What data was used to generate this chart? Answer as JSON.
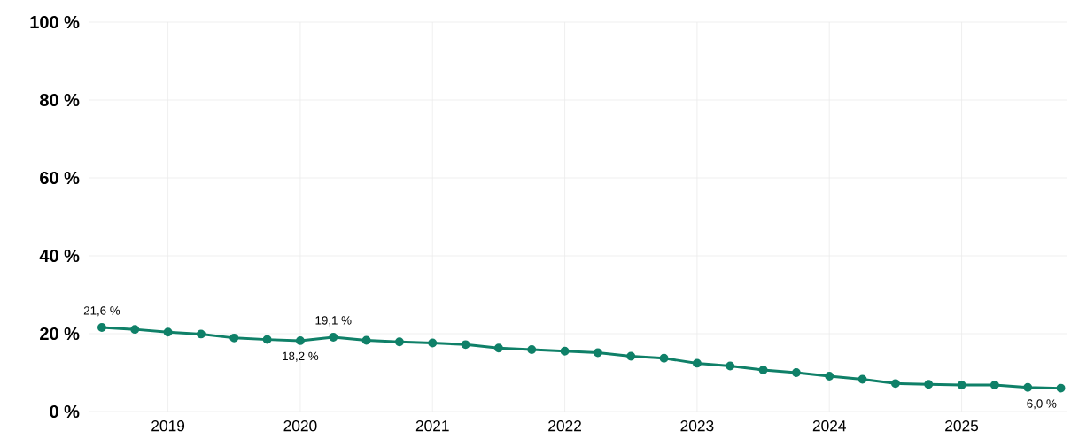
{
  "chart_data": {
    "type": "line",
    "x": [
      2018.5,
      2018.75,
      2019.0,
      2019.25,
      2019.5,
      2019.75,
      2020.0,
      2020.25,
      2020.5,
      2020.75,
      2021.0,
      2021.25,
      2021.5,
      2021.75,
      2022.0,
      2022.25,
      2022.5,
      2022.75,
      2023.0,
      2023.25,
      2023.5,
      2023.75,
      2024.0,
      2024.25,
      2024.5,
      2024.75,
      2025.0,
      2025.25,
      2025.5,
      2025.75
    ],
    "series": [
      {
        "color": "#0f8068",
        "values": [
          21.6,
          21.1,
          20.4,
          19.9,
          18.9,
          18.5,
          18.2,
          19.1,
          18.3,
          17.9,
          17.6,
          17.2,
          16.3,
          15.9,
          15.5,
          15.1,
          14.2,
          13.7,
          12.4,
          11.7,
          10.7,
          10.0,
          9.1,
          8.3,
          7.2,
          7.0,
          6.8,
          6.8,
          6.2,
          6.0
        ],
        "value_labels": [
          "21,6 %",
          null,
          null,
          null,
          null,
          null,
          "18,2 %",
          "19,1 %",
          null,
          null,
          null,
          null,
          null,
          null,
          null,
          null,
          null,
          null,
          null,
          null,
          null,
          null,
          null,
          null,
          null,
          null,
          null,
          null,
          null,
          "6,0 %"
        ]
      }
    ],
    "xlim": [
      2018.4,
      2025.8
    ],
    "ylim": [
      0,
      100
    ],
    "xticks": [
      2019,
      2020,
      2021,
      2022,
      2023,
      2024,
      2025
    ],
    "yticks": [
      {
        "value": 0,
        "label": "0 %"
      },
      {
        "value": 20,
        "label": "20 %"
      },
      {
        "value": 40,
        "label": "40 %"
      },
      {
        "value": 60,
        "label": "60 %"
      },
      {
        "value": 80,
        "label": "80 %"
      },
      {
        "value": 100,
        "label": "100 %"
      }
    ],
    "grid": true,
    "marker": "circle",
    "line_style": "solid"
  }
}
